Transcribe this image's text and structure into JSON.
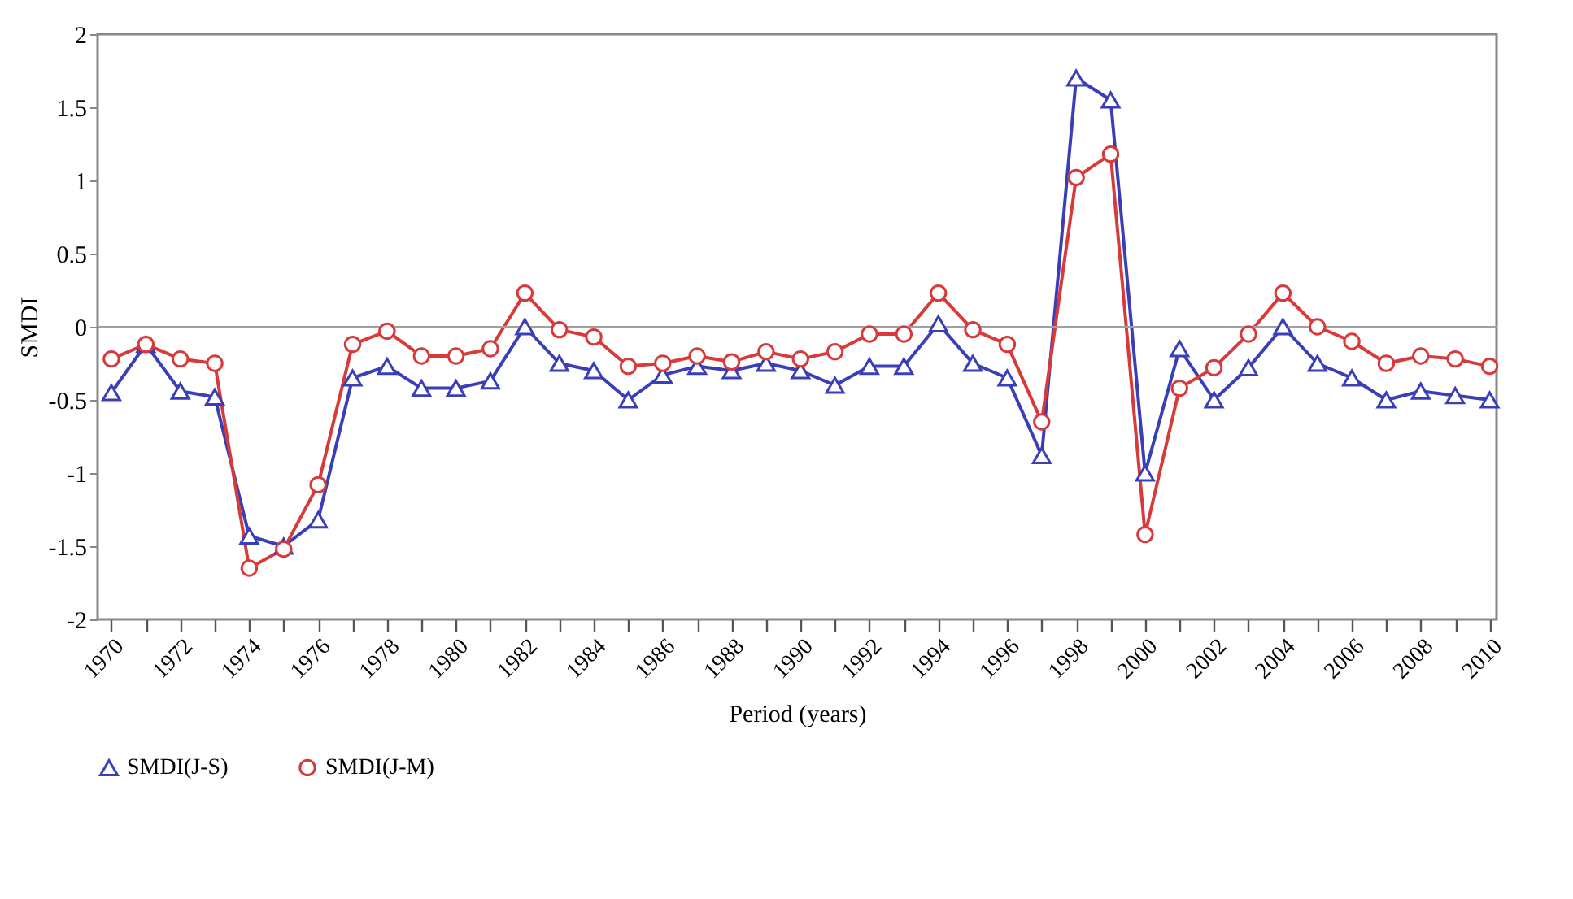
{
  "chart_data": {
    "type": "line",
    "xlabel": "Period (years)",
    "ylabel": "SMDI",
    "x": [
      1970,
      1971,
      1972,
      1973,
      1974,
      1975,
      1976,
      1977,
      1978,
      1979,
      1980,
      1981,
      1982,
      1983,
      1984,
      1985,
      1986,
      1987,
      1988,
      1989,
      1990,
      1991,
      1992,
      1993,
      1994,
      1995,
      1996,
      1997,
      1998,
      1999,
      2000,
      2001,
      2002,
      2003,
      2004,
      2005,
      2006,
      2007,
      2008,
      2009,
      2010
    ],
    "series": [
      {
        "name": "SMDI(J-S)",
        "color": "#3a3fb8",
        "marker": "triangle",
        "values": [
          -0.45,
          -0.12,
          -0.44,
          -0.48,
          -1.43,
          -1.5,
          -1.32,
          -0.35,
          -0.27,
          -0.42,
          -0.42,
          -0.37,
          0.0,
          -0.25,
          -0.3,
          -0.5,
          -0.33,
          -0.27,
          -0.3,
          -0.25,
          -0.3,
          -0.4,
          -0.27,
          -0.27,
          0.02,
          -0.25,
          -0.35,
          -0.88,
          1.7,
          1.55,
          -1.0,
          -0.15,
          -0.5,
          -0.28,
          0.0,
          -0.25,
          -0.35,
          -0.5,
          -0.44,
          -0.47,
          -0.5
        ]
      },
      {
        "name": "SMDI(J-M)",
        "color": "#d83a3a",
        "marker": "circle",
        "values": [
          -0.22,
          -0.12,
          -0.22,
          -0.25,
          -1.65,
          -1.52,
          -1.08,
          -0.12,
          -0.03,
          -0.2,
          -0.2,
          -0.15,
          0.23,
          -0.02,
          -0.07,
          -0.27,
          -0.25,
          -0.2,
          -0.24,
          -0.17,
          -0.22,
          -0.17,
          -0.05,
          -0.05,
          0.23,
          -0.02,
          -0.12,
          -0.65,
          1.02,
          1.18,
          -1.42,
          -0.42,
          -0.28,
          -0.05,
          0.23,
          0.0,
          -0.1,
          -0.25,
          -0.2,
          -0.22,
          -0.27
        ]
      }
    ],
    "xlim": [
      1969.6,
      2010.2
    ],
    "xticks": [
      1970,
      {
        "value": 1971,
        "label": null
      },
      1972,
      {
        "value": 1973,
        "label": null
      },
      1974,
      {
        "value": 1975,
        "label": null
      },
      1976,
      {
        "value": 1977,
        "label": null
      },
      1978,
      {
        "value": 1979,
        "label": null
      },
      1980,
      {
        "value": 1981,
        "label": null
      },
      1982,
      {
        "value": 1983,
        "label": null
      },
      1984,
      {
        "value": 1985,
        "label": null
      },
      1986,
      {
        "value": 1987,
        "label": null
      },
      1988,
      {
        "value": 1989,
        "label": null
      },
      1990,
      {
        "value": 1991,
        "label": null
      },
      1992,
      {
        "value": 1993,
        "label": null
      },
      1994,
      {
        "value": 1995,
        "label": null
      },
      1996,
      {
        "value": 1997,
        "label": null
      },
      1998,
      {
        "value": 1999,
        "label": null
      },
      2000,
      {
        "value": 2001,
        "label": null
      },
      2002,
      {
        "value": 2003,
        "label": null
      },
      2004,
      {
        "value": 2005,
        "label": null
      },
      2006,
      {
        "value": 2007,
        "label": null
      },
      2008,
      {
        "value": 2009,
        "label": null
      },
      2010
    ],
    "ylim": [
      -2,
      2
    ],
    "yticks": [
      -2,
      {
        "value": -1.5,
        "label": "-1.5"
      },
      -1,
      {
        "value": -0.5,
        "label": "-0.5"
      },
      0,
      {
        "value": 0.5,
        "label": "0.5"
      },
      1,
      {
        "value": 1.5,
        "label": "1.5"
      },
      2
    ],
    "ref_lines": [
      {
        "axis": "y",
        "value": 0,
        "color": "#a0a0a0"
      }
    ],
    "grid": false,
    "legend": "bottom",
    "line_style": "solid"
  }
}
